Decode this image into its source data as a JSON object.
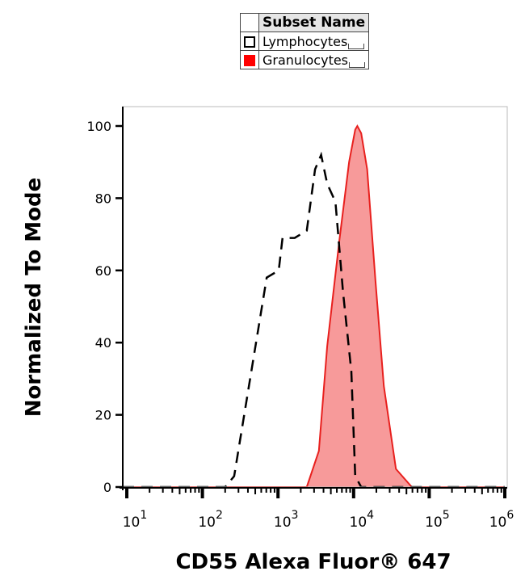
{
  "legend": {
    "header": "Subset Name",
    "entries": [
      {
        "label": "Lymphocytes",
        "swatch": "outline",
        "color": "#000000"
      },
      {
        "label": "Granulocytes",
        "swatch": "filled",
        "color": "#ff0000"
      }
    ]
  },
  "chart_data": {
    "type": "line",
    "title": "",
    "xlabel": "CD55 Alexa Fluor® 647",
    "ylabel": "Normalized To Mode",
    "xscale": "log",
    "xlim": [
      10,
      1000000
    ],
    "ylim": [
      0,
      100
    ],
    "x_ticks": [
      {
        "base": "10",
        "exp": "1"
      },
      {
        "base": "10",
        "exp": "2"
      },
      {
        "base": "10",
        "exp": "3"
      },
      {
        "base": "10",
        "exp": "4"
      },
      {
        "base": "10",
        "exp": "5"
      },
      {
        "base": "10",
        "exp": "6"
      }
    ],
    "y_ticks": [
      "0",
      "20",
      "40",
      "60",
      "80",
      "100"
    ],
    "grid": false,
    "legend_position": "top",
    "series": [
      {
        "name": "Lymphocytes",
        "style": "dashed",
        "color": "#000000",
        "fill": "none",
        "x": [
          6,
          200,
          263,
          708,
          1023,
          1148,
          1660,
          2400,
          3090,
          3720,
          4470,
          5750,
          7240,
          9330,
          10500,
          12600,
          1000000
        ],
        "y": [
          0,
          0,
          3,
          58,
          60,
          69,
          69,
          71,
          88,
          92,
          84,
          79,
          54,
          32,
          3,
          0,
          0
        ]
      },
      {
        "name": "Granulocytes",
        "style": "solid",
        "color": "#e8201e",
        "fill": "#f79a9a",
        "x": [
          6,
          2400,
          3470,
          4470,
          6460,
          8710,
          10500,
          11200,
          12600,
          15100,
          19500,
          25100,
          36300,
          58900,
          1000000
        ],
        "y": [
          0,
          0,
          10,
          39,
          68,
          90,
          99,
          100,
          98,
          88,
          57,
          28,
          5,
          0,
          0
        ]
      }
    ]
  }
}
